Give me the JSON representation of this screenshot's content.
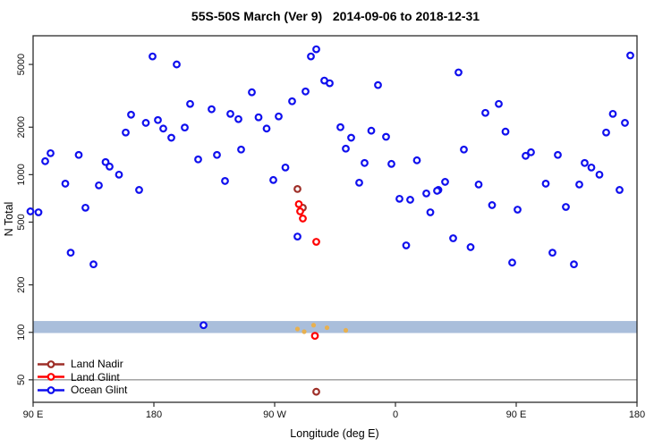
{
  "title": "55S-50S March (Ver 9)   2014-09-06 to 2018-12-31",
  "chart_data": {
    "type": "scatter",
    "title": "55S-50S March (Ver 9)   2014-09-06 to 2018-12-31",
    "xlabel": "Longitude (deg E)",
    "ylabel": "N Total",
    "x_axis": {
      "scale": "linear",
      "domain": [
        90,
        540
      ],
      "ticks": [
        {
          "value": 90,
          "label": "90 E"
        },
        {
          "value": 180,
          "label": "180"
        },
        {
          "value": 270,
          "label": "90 W"
        },
        {
          "value": 360,
          "label": "0"
        },
        {
          "value": 450,
          "label": "90 E"
        },
        {
          "value": 540,
          "label": "180"
        }
      ]
    },
    "y_axis": {
      "scale": "log",
      "domain": [
        36,
        7600
      ],
      "ticks": [
        {
          "value": 50,
          "label": "50"
        },
        {
          "value": 100,
          "label": "100"
        },
        {
          "value": 200,
          "label": "200"
        },
        {
          "value": 500,
          "label": "500"
        },
        {
          "value": 1000,
          "label": "1000"
        },
        {
          "value": 2000,
          "label": "2000"
        },
        {
          "value": 5000,
          "label": "5000"
        }
      ]
    },
    "highlight_band": {
      "n_min": 99,
      "n_max": 118,
      "color": "#a9bedb"
    },
    "reference_line": {
      "n": 50,
      "color": "#9a9a9a"
    },
    "legend": {
      "position": "bottom-left",
      "entries": [
        {
          "label": "Land Nadir",
          "color": "#9e2f28"
        },
        {
          "label": "Land Glint",
          "color": "#ff0000"
        },
        {
          "label": "Ocean Glint",
          "color": "#0f0fee"
        }
      ]
    },
    "series": [
      {
        "name": "Land Nadir",
        "color": "#9e2f28",
        "symbol": "open-circle",
        "points": [
          [
            287,
            811
          ],
          [
            291,
            617
          ],
          [
            301,
            42
          ]
        ]
      },
      {
        "name": "Land Glint",
        "color": "#ff0000",
        "symbol": "open-circle",
        "points": [
          [
            288,
            650
          ],
          [
            289,
            585
          ],
          [
            291,
            527
          ],
          [
            301,
            375
          ],
          [
            300,
            95
          ]
        ]
      },
      {
        "name": "Ocean Glint",
        "color": "#0f0fee",
        "symbol": "open-circle",
        "points": [
          [
            179,
            5620
          ],
          [
            197,
            5000
          ],
          [
            301,
            6240
          ],
          [
            297,
            5620
          ],
          [
            535,
            5700
          ],
          [
            407,
            4450
          ],
          [
            307,
            3950
          ],
          [
            311,
            3800
          ],
          [
            347,
            3700
          ],
          [
            253,
            3330
          ],
          [
            293,
            3370
          ],
          [
            283,
            2920
          ],
          [
            207,
            2810
          ],
          [
            437,
            2810
          ],
          [
            223,
            2600
          ],
          [
            163,
            2400
          ],
          [
            237,
            2430
          ],
          [
            522,
            2430
          ],
          [
            427,
            2465
          ],
          [
            243,
            2250
          ],
          [
            183,
            2220
          ],
          [
            174,
            2130
          ],
          [
            531,
            2130
          ],
          [
            258,
            2310
          ],
          [
            273,
            2340
          ],
          [
            203,
            1990
          ],
          [
            319,
            2000
          ],
          [
            187,
            1960
          ],
          [
            264,
            1960
          ],
          [
            342,
            1900
          ],
          [
            159,
            1850
          ],
          [
            517,
            1850
          ],
          [
            442,
            1875
          ],
          [
            193,
            1715
          ],
          [
            327,
            1715
          ],
          [
            353,
            1738
          ],
          [
            323,
            1462
          ],
          [
            245,
            1443
          ],
          [
            411,
            1443
          ],
          [
            99,
            1217
          ],
          [
            103,
            1368
          ],
          [
            124,
            1334
          ],
          [
            461,
            1387
          ],
          [
            457,
            1316
          ],
          [
            481,
            1334
          ],
          [
            213,
            1250
          ],
          [
            227,
            1334
          ],
          [
            144,
            1202
          ],
          [
            147,
            1125
          ],
          [
            278,
            1110
          ],
          [
            337,
            1186
          ],
          [
            357,
            1170
          ],
          [
            376,
            1233
          ],
          [
            501,
            1186
          ],
          [
            506,
            1110
          ],
          [
            154,
            1000
          ],
          [
            512,
            1000
          ],
          [
            114,
            877
          ],
          [
            139,
            855
          ],
          [
            169,
            800
          ],
          [
            269,
            925
          ],
          [
            333,
            889
          ],
          [
            397,
            900
          ],
          [
            392,
            800
          ],
          [
            422,
            866
          ],
          [
            472,
            877
          ],
          [
            497,
            866
          ],
          [
            527,
            800
          ],
          [
            233,
            912
          ],
          [
            129,
            617
          ],
          [
            94,
            577
          ],
          [
            88,
            585
          ],
          [
            363,
            703
          ],
          [
            371,
            693
          ],
          [
            383,
            760
          ],
          [
            391,
            790
          ],
          [
            386,
            577
          ],
          [
            432,
            641
          ],
          [
            451,
            600
          ],
          [
            487,
            624
          ],
          [
            287,
            405
          ],
          [
            118,
            320
          ],
          [
            135,
            270
          ],
          [
            217,
            111
          ],
          [
            368,
            356
          ],
          [
            403,
            395
          ],
          [
            416,
            347
          ],
          [
            447,
            277
          ],
          [
            477,
            320
          ],
          [
            493,
            270
          ]
        ]
      },
      {
        "name": "unlabeled orange marks",
        "color": "#e8b04f",
        "symbol": "filled-dot",
        "points": [
          [
            287,
            105
          ],
          [
            292,
            101
          ],
          [
            299,
            111
          ],
          [
            309,
            107
          ],
          [
            323,
            103
          ]
        ]
      }
    ]
  }
}
